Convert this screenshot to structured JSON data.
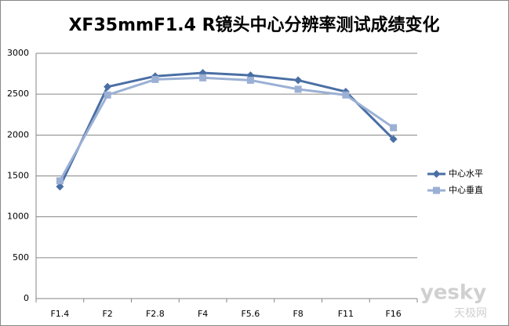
{
  "chart_data": {
    "type": "line",
    "title": "XF35mmF1.4 R镜头中心分辨率测试成绩变化",
    "categories": [
      "F1.4",
      "F2",
      "F2.8",
      "F4",
      "F5.6",
      "F8",
      "F11",
      "F16"
    ],
    "series": [
      {
        "name": "中心水平",
        "color": "#4a6fa5",
        "marker": "diamond",
        "values": [
          1370,
          2590,
          2720,
          2760,
          2730,
          2670,
          2530,
          1950
        ]
      },
      {
        "name": "中心垂直",
        "color": "#9bb0d4",
        "marker": "square",
        "values": [
          1440,
          2490,
          2680,
          2700,
          2670,
          2560,
          2490,
          2090
        ]
      }
    ],
    "ylim": [
      0,
      3000
    ],
    "yticks": [
      0,
      500,
      1000,
      1500,
      2000,
      2500,
      3000
    ],
    "grid": true,
    "legend": "right",
    "watermark": [
      "yesky",
      "天极网"
    ]
  }
}
